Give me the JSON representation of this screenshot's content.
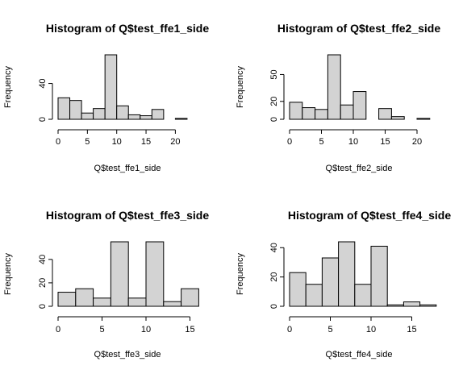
{
  "chart_data": [
    {
      "type": "bar",
      "title": "Histogram of Q$test_ffe1_side",
      "xlabel": "Q$test_ffe1_side",
      "ylabel": "Frequency",
      "bin_width": 2,
      "bin_start": 0,
      "values": [
        24,
        21,
        7,
        12,
        72,
        15,
        5,
        4,
        11,
        0,
        1
      ],
      "xlim": [
        0,
        22
      ],
      "ylim": [
        0,
        72
      ],
      "xticks": [
        0,
        5,
        10,
        15,
        20
      ],
      "yticks": [
        0,
        40
      ]
    },
    {
      "type": "bar",
      "title": "Histogram of Q$test_ffe2_side",
      "xlabel": "Q$test_ffe2_side",
      "ylabel": "Frequency",
      "bin_width": 2,
      "bin_start": 0,
      "values": [
        19,
        13,
        11,
        72,
        16,
        31,
        0,
        12,
        3,
        0,
        1
      ],
      "xlim": [
        0,
        22
      ],
      "ylim": [
        0,
        72
      ],
      "xticks": [
        0,
        5,
        10,
        15,
        20
      ],
      "yticks": [
        0,
        20,
        50
      ]
    },
    {
      "type": "bar",
      "title": "Histogram of Q$test_ffe3_side",
      "xlabel": "Q$test_ffe3_side",
      "ylabel": "Frequency",
      "bin_width": 2,
      "bin_start": 0,
      "values": [
        12,
        15,
        7,
        55,
        7,
        55,
        4,
        15
      ],
      "xlim": [
        0,
        16
      ],
      "ylim": [
        0,
        55
      ],
      "xticks": [
        0,
        5,
        10,
        15
      ],
      "yticks": [
        0,
        20,
        40
      ]
    },
    {
      "type": "bar",
      "title": "Histogram of Q$test_ffe4_side",
      "xlabel": "Q$test_ffe4_side",
      "ylabel": "Frequency",
      "bin_width": 2,
      "bin_start": 0,
      "values": [
        23,
        15,
        33,
        44,
        15,
        41,
        1,
        3,
        1
      ],
      "xlim": [
        0,
        18
      ],
      "ylim": [
        0,
        44
      ],
      "xticks": [
        0,
        5,
        10,
        15
      ],
      "yticks": [
        0,
        20,
        40
      ]
    }
  ]
}
